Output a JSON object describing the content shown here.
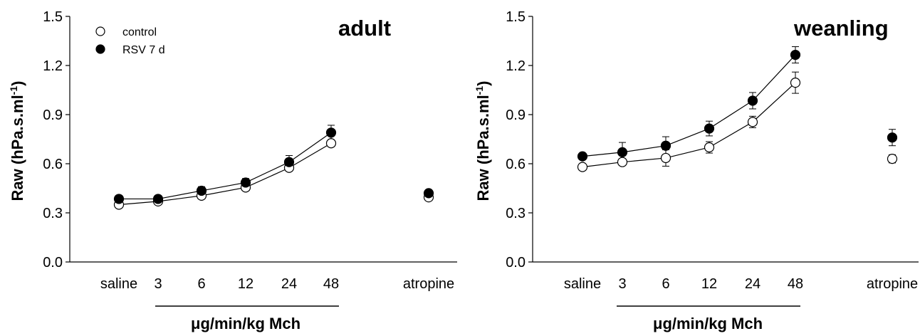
{
  "chart_data": [
    {
      "type": "line",
      "title": "adult",
      "xlabel": "μg/min/kg Mch",
      "ylabel": "Raw (hPa.s.ml⁻¹)",
      "ylim": [
        0.0,
        1.5
      ],
      "yticks": [
        "0.0",
        "0.3",
        "0.6",
        "0.9",
        "1.2",
        "1.5"
      ],
      "categories": [
        "saline",
        "3",
        "6",
        "12",
        "24",
        "48",
        "atropine"
      ],
      "legend": [
        {
          "name": "control",
          "marker": "open-circle"
        },
        {
          "name": "RSV 7 d",
          "marker": "filled-circle"
        }
      ],
      "series": [
        {
          "name": "control",
          "marker": "open-circle",
          "values": [
            0.35,
            0.37,
            0.405,
            0.455,
            0.575,
            0.725,
            0.395
          ],
          "errors": [
            0.01,
            0.01,
            0.015,
            0.015,
            0.02,
            0.02,
            0.015
          ]
        },
        {
          "name": "RSV 7 d",
          "marker": "filled-circle",
          "values": [
            0.385,
            0.385,
            0.435,
            0.485,
            0.61,
            0.79,
            0.42
          ],
          "errors": [
            0.02,
            0.02,
            0.025,
            0.025,
            0.04,
            0.045,
            0.02
          ]
        }
      ]
    },
    {
      "type": "line",
      "title": "weanling",
      "xlabel": "μg/min/kg Mch",
      "ylabel": "Raw (hPa.s.ml⁻¹)",
      "ylim": [
        0.0,
        1.5
      ],
      "yticks": [
        "0.0",
        "0.3",
        "0.6",
        "0.9",
        "1.2",
        "1.5"
      ],
      "categories": [
        "saline",
        "3",
        "6",
        "12",
        "24",
        "48",
        "atropine"
      ],
      "series": [
        {
          "name": "control",
          "marker": "open-circle",
          "values": [
            0.58,
            0.61,
            0.635,
            0.7,
            0.855,
            1.095,
            0.63
          ],
          "errors": [
            0.015,
            0.02,
            0.05,
            0.035,
            0.035,
            0.065,
            0.025
          ]
        },
        {
          "name": "RSV 7 d",
          "marker": "filled-circle",
          "values": [
            0.645,
            0.67,
            0.71,
            0.815,
            0.985,
            1.265,
            0.76
          ],
          "errors": [
            0.015,
            0.06,
            0.055,
            0.045,
            0.05,
            0.05,
            0.05
          ]
        }
      ]
    }
  ]
}
